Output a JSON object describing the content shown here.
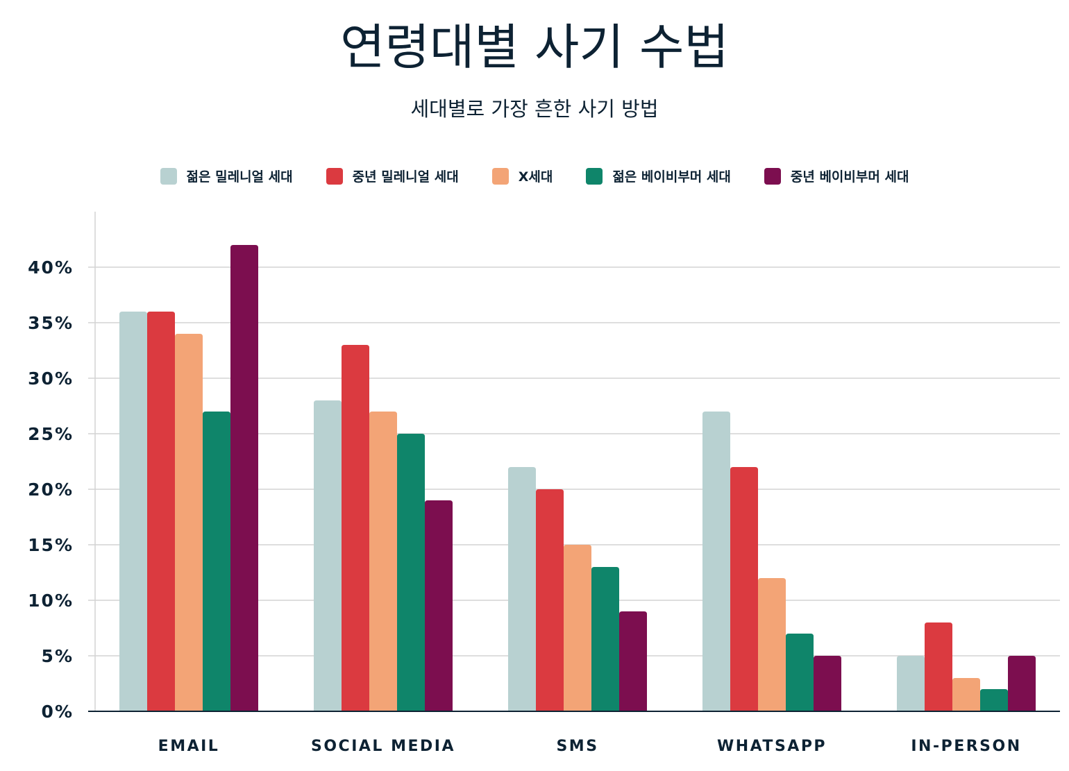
{
  "chart_data": {
    "type": "bar",
    "title": "연령대별 사기 수법",
    "subtitle": "세대별로 가장 흔한 사기 방법",
    "categories": [
      "EMAIL",
      "SOCIAL MEDIA",
      "SMS",
      "WHATSAPP",
      "IN-PERSON"
    ],
    "series": [
      {
        "name": "젊은 밀레니얼 세대",
        "color": "#b8d1d1",
        "values": [
          36,
          28,
          22,
          27,
          5
        ]
      },
      {
        "name": "중년 밀레니얼 세대",
        "color": "#db3a40",
        "values": [
          36,
          33,
          20,
          22,
          8
        ]
      },
      {
        "name": "X세대",
        "color": "#f3a476",
        "values": [
          34,
          27,
          15,
          12,
          3
        ]
      },
      {
        "name": "젊은 베이비부머 세대",
        "color": "#0f856a",
        "values": [
          27,
          25,
          13,
          7,
          2
        ]
      },
      {
        "name": "중년 베이비부머 세대",
        "color": "#7c0e4f",
        "values": [
          42,
          19,
          9,
          5,
          5
        ]
      }
    ],
    "ylim": [
      0,
      45
    ],
    "yticks": [
      "0%",
      "5%",
      "10%",
      "15%",
      "20%",
      "25%",
      "30%",
      "35%",
      "40%"
    ],
    "grid": true,
    "legend_position": "top"
  }
}
